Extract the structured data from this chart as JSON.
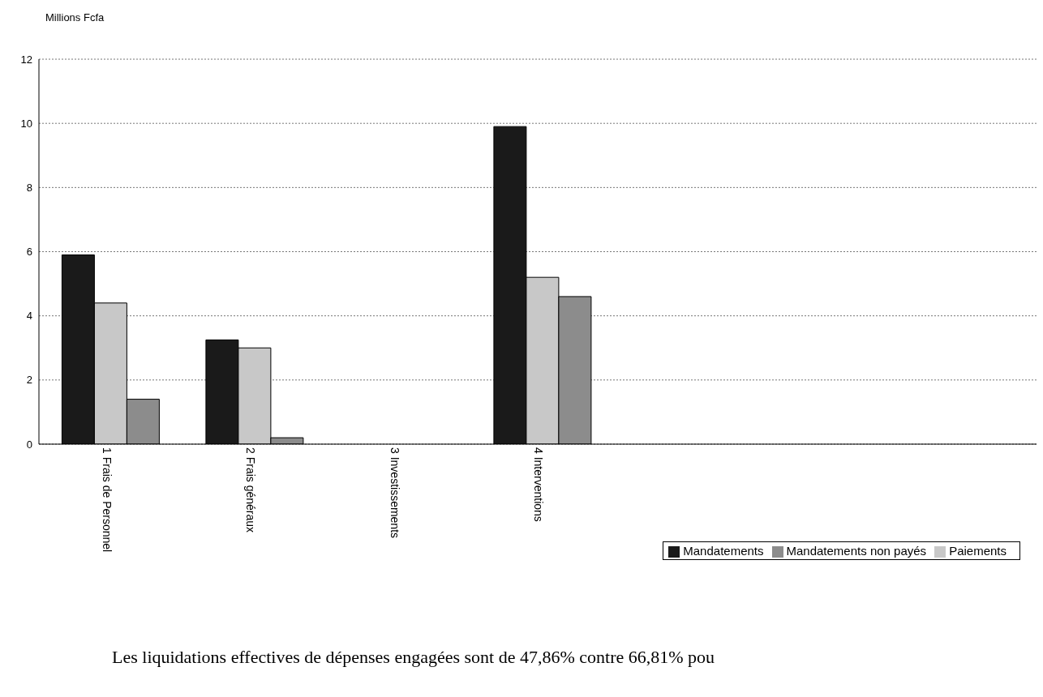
{
  "chart_data": {
    "type": "bar",
    "ylabel": "Millions Fcfa",
    "categories": [
      "1 Frais de Personnel",
      "2 Frais généraux",
      "3 Investissements",
      "4 Interventions"
    ],
    "series": [
      {
        "name": "Mandatements",
        "color": "#1a1a1a",
        "values": [
          5.9,
          3.25,
          0,
          9.9
        ]
      },
      {
        "name": "Paiements",
        "color": "#c8c8c8",
        "values": [
          4.4,
          3.0,
          0,
          5.2
        ]
      },
      {
        "name": "Mandatements non payés",
        "color": "#8c8c8c",
        "values": [
          1.4,
          0.2,
          0,
          4.6
        ]
      }
    ],
    "ylim": [
      0,
      12
    ],
    "yticks": [
      0,
      2,
      4,
      6,
      8,
      10,
      12
    ],
    "grid": "y",
    "legend": "bottom right",
    "annotations": [
      "Les liquidations effectives de dépenses engagées sont de 47,86% contre 66,81% pou"
    ]
  }
}
